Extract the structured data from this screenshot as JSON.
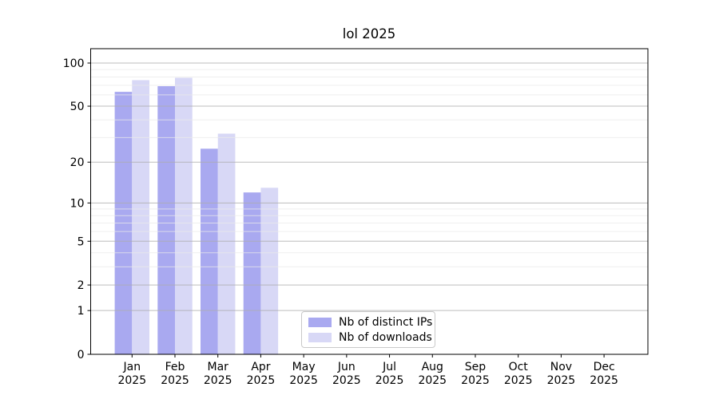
{
  "chart_data": {
    "type": "bar",
    "title": "lol 2025",
    "year_label": "2025",
    "categories": [
      "Jan",
      "Feb",
      "Mar",
      "Apr",
      "May",
      "Jun",
      "Jul",
      "Aug",
      "Sep",
      "Oct",
      "Nov",
      "Dec"
    ],
    "series": [
      {
        "name": "Nb of distinct IPs",
        "color": "#a9a9f0",
        "values": [
          63,
          69,
          25,
          12,
          0,
          0,
          0,
          0,
          0,
          0,
          0,
          0
        ]
      },
      {
        "name": "Nb of downloads",
        "color": "#d8d8f6",
        "values": [
          76,
          79,
          32,
          13,
          0,
          0,
          0,
          0,
          0,
          0,
          0,
          0
        ]
      }
    ],
    "yscale": "log1p",
    "ylim": [
      0,
      126
    ],
    "y_major_ticks": [
      0,
      1,
      2,
      5,
      10,
      20,
      50,
      100
    ],
    "y_minor_ticks": [
      3,
      4,
      6,
      7,
      8,
      9,
      30,
      40,
      60,
      70,
      80,
      90
    ],
    "grid": true,
    "legend_position": "inside-bottom-center"
  },
  "colors": {
    "major_grid": "rgba(173,173,173,0.8)",
    "minor_grid": "rgba(233,233,233,0.75)",
    "spine": "#000000",
    "text": "#000000"
  }
}
